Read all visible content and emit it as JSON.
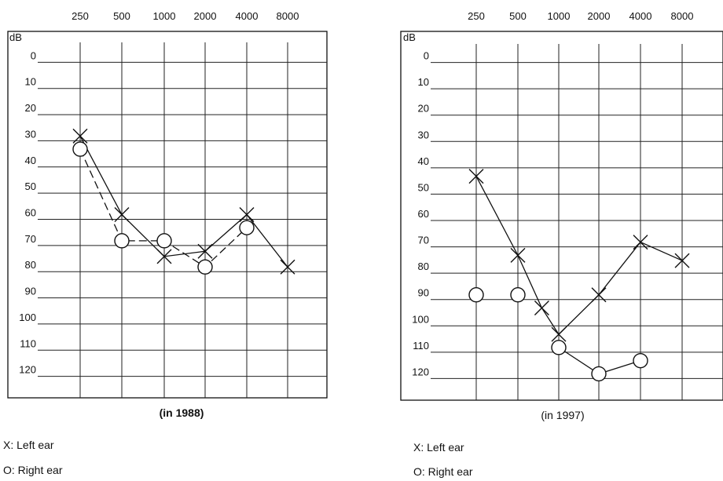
{
  "chart_data": [
    {
      "type": "line",
      "title": "",
      "caption": "(in 1988)",
      "x_tick_labels": [
        "250",
        "500",
        "1000",
        "2000",
        "4000",
        "8000"
      ],
      "x_scale": "log2",
      "y_unit": "dB",
      "y_tick_labels": [
        "0",
        "10",
        "20",
        "30",
        "40",
        "50",
        "60",
        "70",
        "80",
        "90",
        "100",
        "110",
        "120"
      ],
      "ylim": [
        -10,
        130
      ],
      "y_inverted": true,
      "grid": true,
      "series": [
        {
          "name": "X: Left ear",
          "marker": "x",
          "line_style": "solid",
          "x": [
            250,
            500,
            1000,
            2000,
            4000,
            8000
          ],
          "values": [
            30,
            60,
            76,
            74,
            60,
            80
          ]
        },
        {
          "name": "O: Right ear",
          "marker": "o",
          "line_style": "dashed",
          "x": [
            250,
            500,
            1000,
            2000,
            4000
          ],
          "values": [
            35,
            70,
            70,
            80,
            65
          ]
        }
      ],
      "legend": [
        "X: Left ear",
        "O: Right ear"
      ],
      "legend_position": "bottom-left"
    },
    {
      "type": "line",
      "title": "",
      "caption": "(in 1997)",
      "x_tick_labels": [
        "250",
        "500",
        "1000",
        "2000",
        "4000",
        "8000"
      ],
      "x_scale": "log2",
      "y_unit": "dB",
      "y_tick_labels": [
        "0",
        "10",
        "20",
        "30",
        "40",
        "50",
        "60",
        "70",
        "80",
        "90",
        "100",
        "110",
        "120"
      ],
      "ylim": [
        -10,
        130
      ],
      "y_inverted": true,
      "grid": true,
      "series": [
        {
          "name": "X: Left ear",
          "marker": "x",
          "line_style": "mixed",
          "x": [
            250,
            500,
            750,
            1000,
            2000,
            4000,
            8000
          ],
          "values": [
            45,
            75,
            95,
            105,
            90,
            70,
            77
          ]
        },
        {
          "name": "O: Right ear",
          "marker": "o",
          "line_style": "partial",
          "x": [
            250,
            500,
            1000,
            2000,
            4000
          ],
          "values": [
            90,
            90,
            110,
            120,
            115
          ]
        }
      ],
      "legend": [
        "X: Left ear",
        "O: Right ear"
      ],
      "legend_position": "bottom-left"
    }
  ]
}
